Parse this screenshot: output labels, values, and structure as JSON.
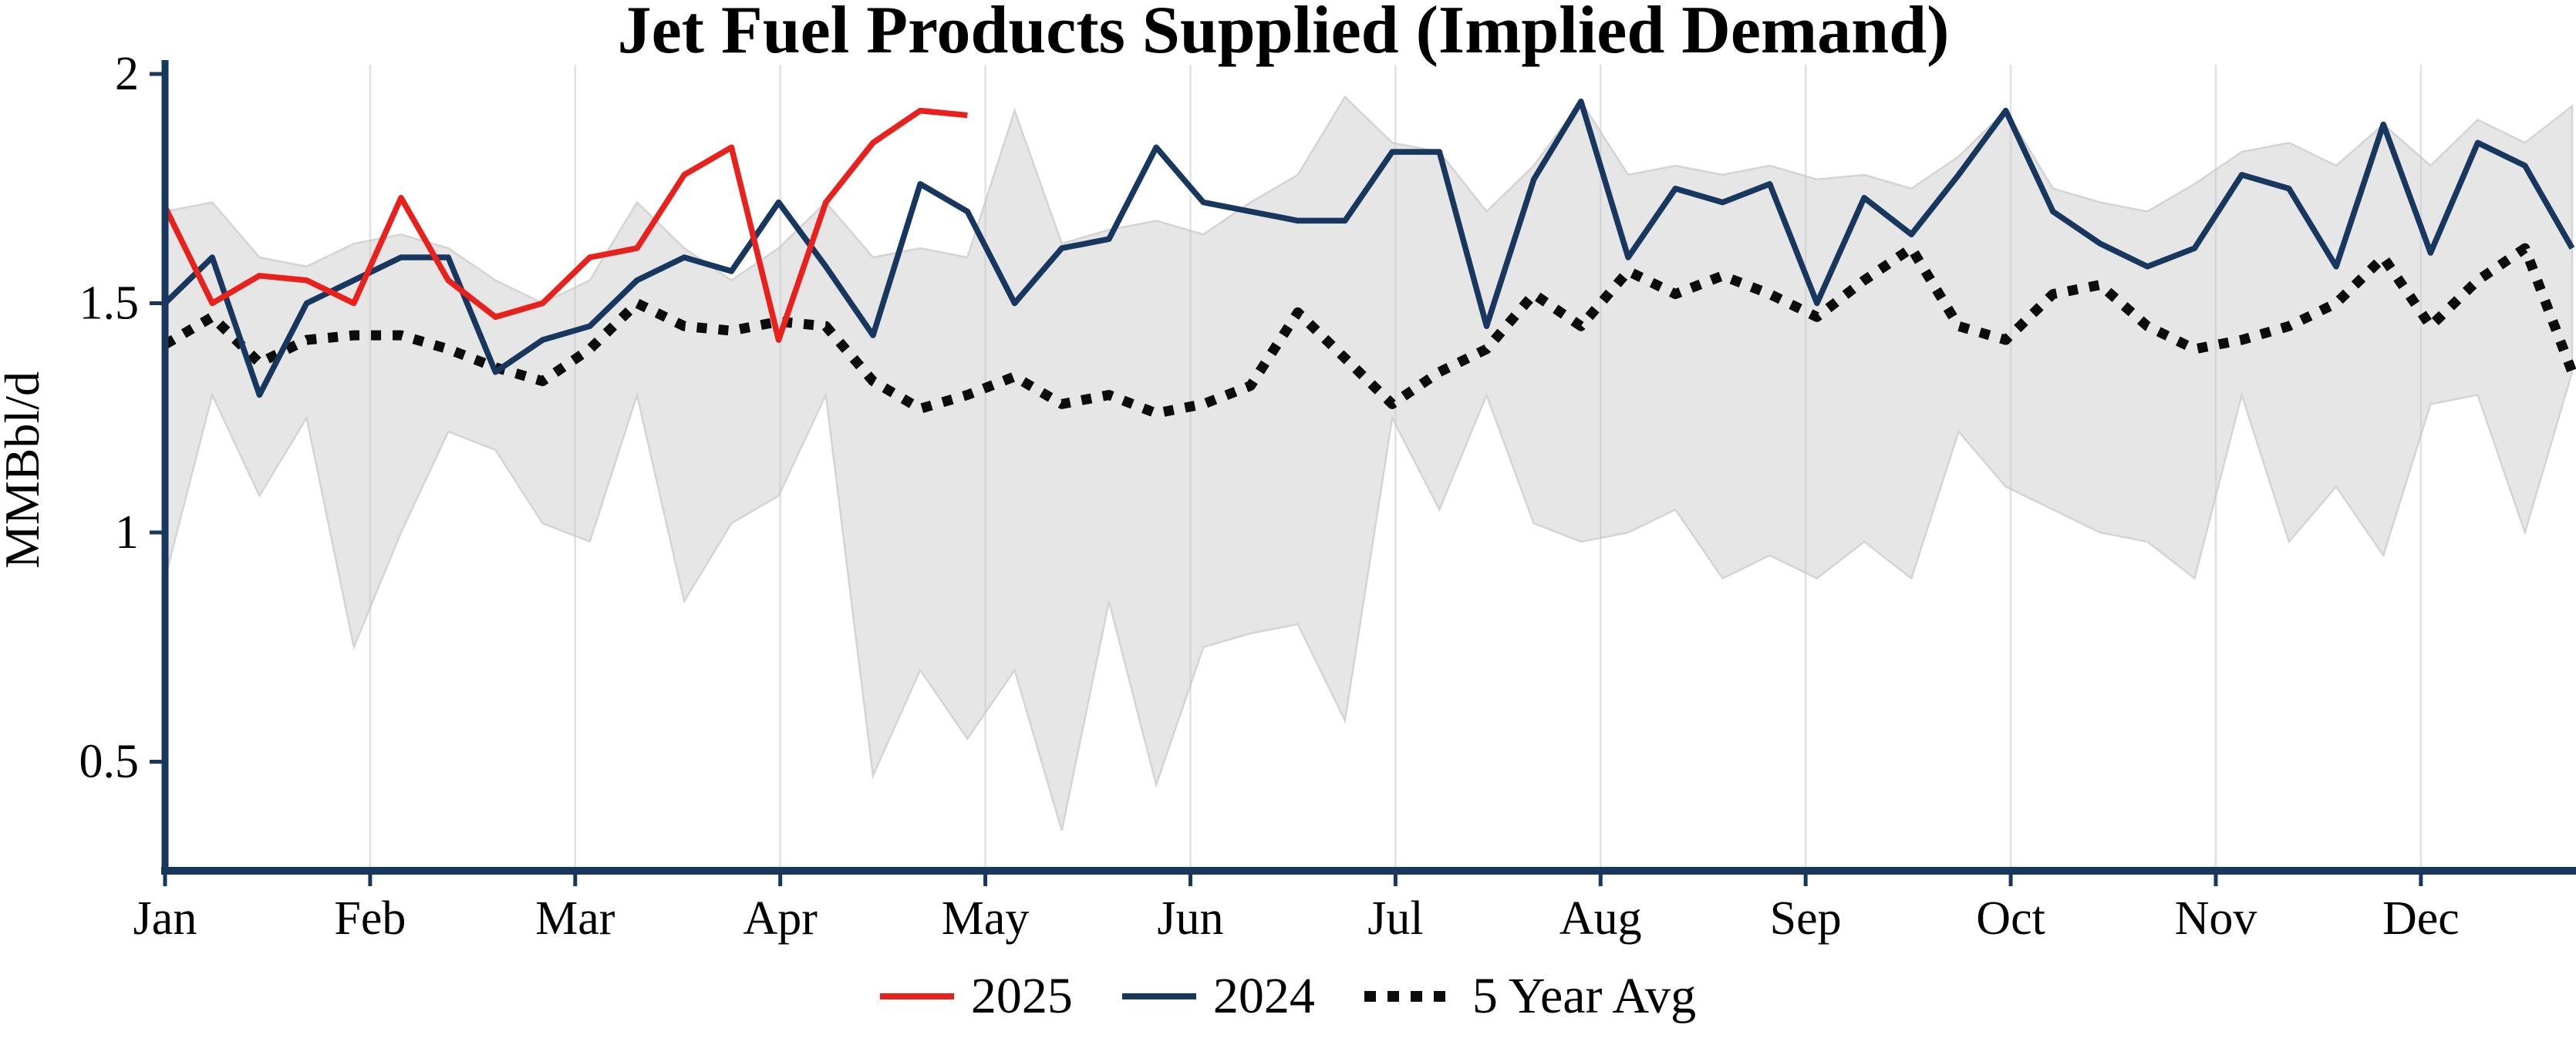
{
  "chart_data": {
    "type": "line",
    "title": "Jet Fuel Products Supplied (Implied Demand)",
    "xlabel": "",
    "ylabel": "MMBbl/d",
    "x_unit": "week_of_year",
    "weeks": 52,
    "months": [
      "Jan",
      "Feb",
      "Mar",
      "Apr",
      "May",
      "Jun",
      "Jul",
      "Aug",
      "Sep",
      "Oct",
      "Nov",
      "Dec"
    ],
    "yticks": {
      "values": [
        2,
        1.5,
        1,
        0.5
      ],
      "labels": [
        "2",
        "1.5",
        "1",
        "0.5"
      ]
    },
    "ylim": [
      0.26,
      2.02
    ],
    "grid": "vertical-months-faint",
    "legend_position": "bottom-center",
    "colors": {
      "red_2025": "#e8211d",
      "navy_2024": "#17375e",
      "avg_black": "#0c0c0c",
      "band_gray": "#e6e6e6",
      "axis_navy": "#17375e"
    },
    "band": {
      "name": "5-year-range",
      "color": "#e6e6e6",
      "upper": [
        1.7,
        1.72,
        1.6,
        1.58,
        1.63,
        1.65,
        1.62,
        1.55,
        1.5,
        1.55,
        1.72,
        1.62,
        1.55,
        1.62,
        1.72,
        1.6,
        1.62,
        1.6,
        1.92,
        1.63,
        1.66,
        1.68,
        1.65,
        1.72,
        1.78,
        1.95,
        1.85,
        1.83,
        1.7,
        1.8,
        1.94,
        1.78,
        1.8,
        1.78,
        1.8,
        1.77,
        1.78,
        1.75,
        1.82,
        1.92,
        1.75,
        1.72,
        1.7,
        1.76,
        1.83,
        1.85,
        1.8,
        1.89,
        1.8,
        1.9,
        1.85,
        1.93
      ],
      "lower": [
        0.9,
        1.3,
        1.08,
        1.25,
        0.75,
        1.0,
        1.22,
        1.18,
        1.02,
        0.98,
        1.3,
        0.85,
        1.02,
        1.08,
        1.3,
        0.47,
        0.7,
        0.55,
        0.7,
        0.35,
        0.85,
        0.45,
        0.75,
        0.78,
        0.8,
        0.59,
        1.25,
        1.05,
        1.3,
        1.02,
        0.98,
        1.0,
        1.05,
        0.9,
        0.95,
        0.9,
        0.98,
        0.9,
        1.22,
        1.1,
        1.05,
        1.0,
        0.98,
        0.9,
        1.3,
        0.98,
        1.1,
        0.95,
        1.28,
        1.3,
        1.0,
        1.35
      ]
    },
    "series": [
      {
        "name": "5 Year Avg",
        "color": "#0c0c0c",
        "style": "dotted",
        "start_week": 1,
        "values": [
          1.41,
          1.47,
          1.37,
          1.42,
          1.43,
          1.43,
          1.4,
          1.36,
          1.33,
          1.4,
          1.5,
          1.45,
          1.44,
          1.46,
          1.45,
          1.33,
          1.27,
          1.3,
          1.34,
          1.28,
          1.3,
          1.26,
          1.28,
          1.32,
          1.48,
          1.38,
          1.28,
          1.35,
          1.4,
          1.52,
          1.45,
          1.57,
          1.52,
          1.56,
          1.52,
          1.47,
          1.55,
          1.62,
          1.45,
          1.42,
          1.52,
          1.54,
          1.45,
          1.4,
          1.42,
          1.45,
          1.5,
          1.6,
          1.45,
          1.55,
          1.62,
          1.35
        ]
      },
      {
        "name": "2024",
        "color": "#17375e",
        "style": "solid",
        "start_week": 1,
        "values": [
          1.5,
          1.6,
          1.3,
          1.5,
          1.55,
          1.6,
          1.6,
          1.35,
          1.42,
          1.45,
          1.55,
          1.6,
          1.57,
          1.72,
          1.58,
          1.43,
          1.76,
          1.7,
          1.5,
          1.62,
          1.64,
          1.84,
          1.72,
          1.7,
          1.68,
          1.68,
          1.83,
          1.83,
          1.45,
          1.77,
          1.94,
          1.6,
          1.75,
          1.72,
          1.76,
          1.5,
          1.73,
          1.65,
          1.78,
          1.92,
          1.7,
          1.63,
          1.58,
          1.62,
          1.78,
          1.75,
          1.58,
          1.89,
          1.61,
          1.85,
          1.8,
          1.62
        ]
      },
      {
        "name": "2025",
        "color": "#e8211d",
        "style": "solid",
        "start_week": 1,
        "values": [
          1.71,
          1.5,
          1.56,
          1.55,
          1.5,
          1.73,
          1.55,
          1.47,
          1.5,
          1.6,
          1.62,
          1.78,
          1.84,
          1.42,
          1.72,
          1.85,
          1.92,
          1.91
        ]
      }
    ],
    "legend": [
      {
        "label": "2025",
        "color": "#e8211d",
        "style": "solid"
      },
      {
        "label": "2024",
        "color": "#17375e",
        "style": "solid"
      },
      {
        "label": "5 Year Avg",
        "color": "#0c0c0c",
        "style": "dotted"
      }
    ]
  }
}
